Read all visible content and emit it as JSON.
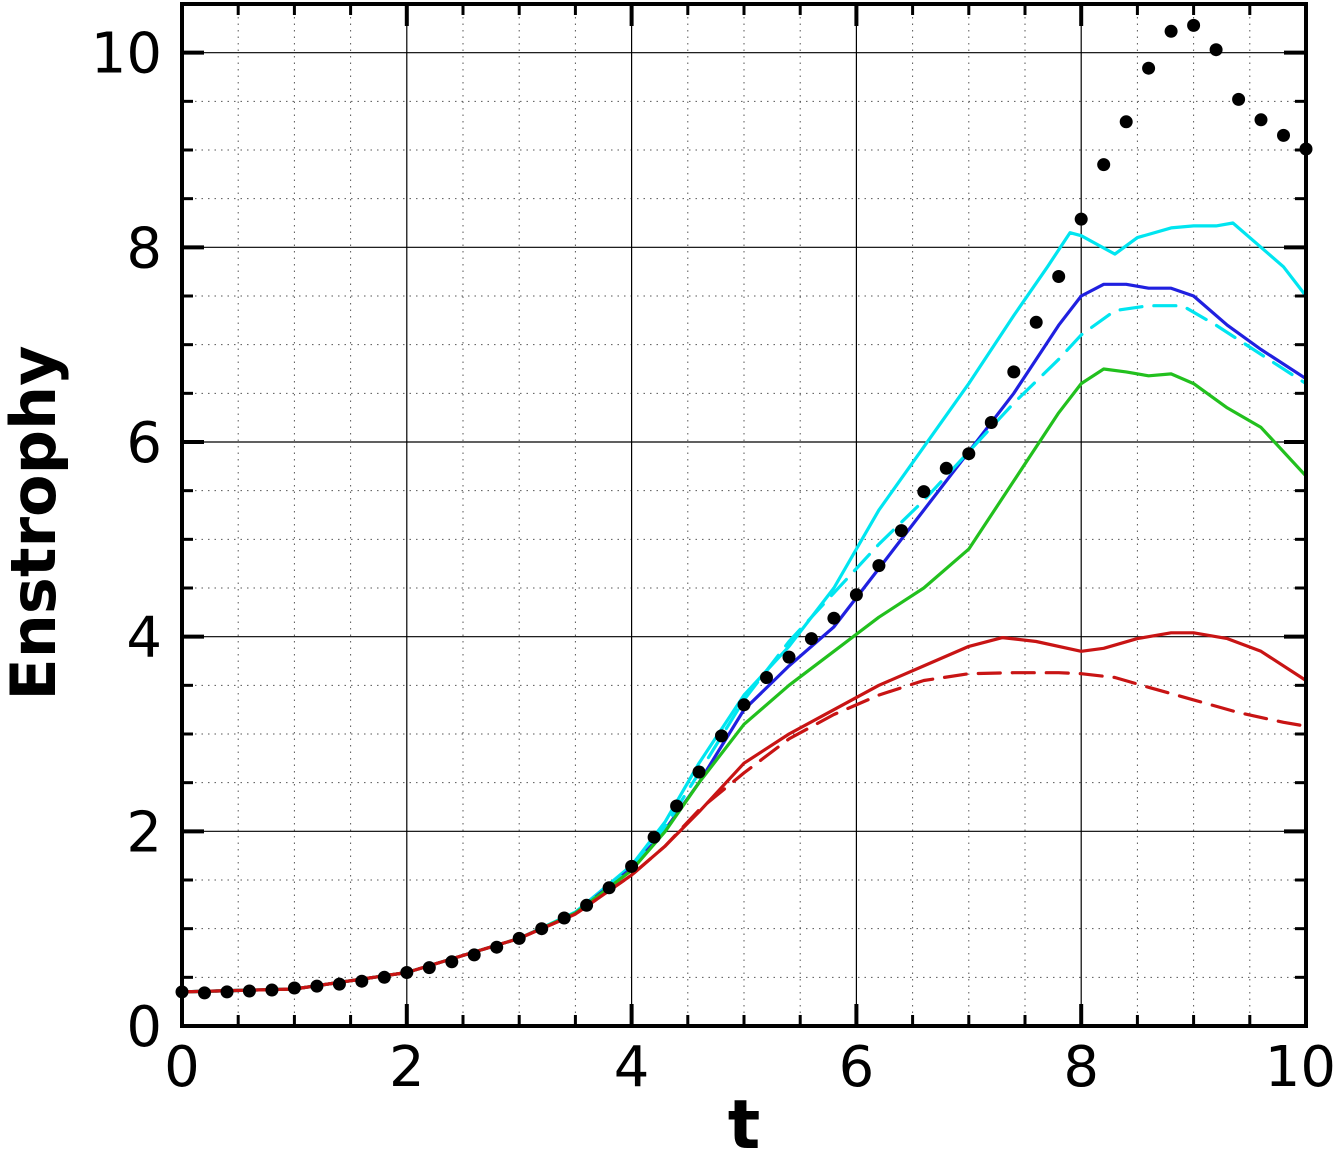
{
  "chart_data": {
    "type": "line",
    "title": "",
    "xlabel": "t",
    "ylabel": "Enstrophy",
    "xlim": [
      0,
      10
    ],
    "ylim": [
      0,
      10.5
    ],
    "xticks": [
      "0",
      "2",
      "4",
      "6",
      "8",
      "10"
    ],
    "yticks": [
      "0",
      "2",
      "4",
      "6",
      "8",
      "10"
    ],
    "xtick_values": [
      0,
      2,
      4,
      6,
      8,
      10
    ],
    "ytick_values": [
      0,
      2,
      4,
      6,
      8,
      10
    ],
    "grid": "major solid, minor dotted",
    "legend": "none",
    "series": [
      {
        "style": "scatter-dots",
        "color": "#000000",
        "x": [
          0,
          0.2,
          0.4,
          0.6,
          0.8,
          1.0,
          1.2,
          1.4,
          1.6,
          1.8,
          2.0,
          2.2,
          2.4,
          2.6,
          2.8,
          3.0,
          3.2,
          3.4,
          3.6,
          3.8,
          4.0,
          4.2,
          4.4,
          4.6,
          4.8,
          5.0,
          5.2,
          5.4,
          5.6,
          5.8,
          6.0,
          6.2,
          6.4,
          6.6,
          6.8,
          7.0,
          7.2,
          7.4,
          7.6,
          7.8,
          8.0,
          8.2,
          8.4,
          8.6,
          8.8,
          9.0,
          9.2,
          9.4,
          9.6,
          9.8,
          10.0
        ],
        "y": [
          0.35,
          0.34,
          0.35,
          0.36,
          0.37,
          0.39,
          0.41,
          0.43,
          0.46,
          0.5,
          0.55,
          0.6,
          0.66,
          0.73,
          0.81,
          0.9,
          1.0,
          1.11,
          1.24,
          1.42,
          1.64,
          1.94,
          2.26,
          2.61,
          2.98,
          3.3,
          3.58,
          3.79,
          3.98,
          4.19,
          4.43,
          4.73,
          5.09,
          5.49,
          5.73,
          5.88,
          6.2,
          6.72,
          7.23,
          7.7,
          8.29,
          8.85,
          9.29,
          9.84,
          10.22,
          10.28,
          10.03,
          9.52,
          9.31,
          9.15,
          9.01
        ]
      },
      {
        "style": "solid",
        "color": "#00e5f0",
        "x": [
          0,
          1,
          2,
          3,
          3.5,
          4,
          4.3,
          4.6,
          5.0,
          5.4,
          5.8,
          6.2,
          6.6,
          7.0,
          7.4,
          7.7,
          7.9,
          8.0,
          8.3,
          8.5,
          8.8,
          9.0,
          9.2,
          9.35,
          9.6,
          9.8,
          10.0
        ],
        "y": [
          0.35,
          0.38,
          0.55,
          0.9,
          1.17,
          1.65,
          2.1,
          2.7,
          3.4,
          3.9,
          4.5,
          5.3,
          5.95,
          6.6,
          7.3,
          7.8,
          8.15,
          8.12,
          7.93,
          8.1,
          8.2,
          8.22,
          8.22,
          8.25,
          8.0,
          7.8,
          7.5
        ]
      },
      {
        "style": "solid",
        "color": "#2020e0",
        "x": [
          0,
          1,
          2,
          3,
          3.5,
          4,
          4.3,
          4.6,
          5.0,
          5.4,
          5.8,
          6.2,
          6.6,
          7.0,
          7.4,
          7.8,
          8.0,
          8.2,
          8.4,
          8.6,
          8.8,
          9.0,
          9.3,
          9.6,
          10.0
        ],
        "y": [
          0.35,
          0.38,
          0.55,
          0.9,
          1.16,
          1.62,
          2.02,
          2.5,
          3.25,
          3.7,
          4.1,
          4.7,
          5.3,
          5.9,
          6.5,
          7.2,
          7.5,
          7.62,
          7.62,
          7.58,
          7.58,
          7.5,
          7.2,
          6.95,
          6.65
        ]
      },
      {
        "style": "dashed",
        "color": "#00e5f0",
        "x": [
          0,
          1,
          2,
          3,
          3.5,
          4,
          4.3,
          4.6,
          5.0,
          5.4,
          5.8,
          6.2,
          6.6,
          7.0,
          7.4,
          7.8,
          8.0,
          8.3,
          8.6,
          8.9,
          9.2,
          9.6,
          10.0
        ],
        "y": [
          0.35,
          0.38,
          0.55,
          0.9,
          1.16,
          1.62,
          2.05,
          2.6,
          3.35,
          3.95,
          4.45,
          4.95,
          5.4,
          5.9,
          6.4,
          6.85,
          7.1,
          7.35,
          7.4,
          7.4,
          7.2,
          6.9,
          6.6
        ]
      },
      {
        "style": "solid",
        "color": "#22c01e",
        "x": [
          0,
          1,
          2,
          3,
          3.5,
          4,
          4.3,
          4.6,
          5.0,
          5.4,
          5.8,
          6.2,
          6.6,
          7.0,
          7.4,
          7.8,
          8.0,
          8.2,
          8.4,
          8.6,
          8.8,
          9.0,
          9.3,
          9.6,
          10.0
        ],
        "y": [
          0.35,
          0.38,
          0.55,
          0.9,
          1.16,
          1.6,
          2.0,
          2.5,
          3.1,
          3.5,
          3.85,
          4.2,
          4.5,
          4.9,
          5.6,
          6.3,
          6.6,
          6.75,
          6.72,
          6.68,
          6.7,
          6.6,
          6.35,
          6.15,
          5.65
        ]
      },
      {
        "style": "solid",
        "color": "#c81414",
        "x": [
          0,
          1,
          2,
          3,
          3.5,
          4,
          4.3,
          4.6,
          5.0,
          5.4,
          5.8,
          6.2,
          6.6,
          7.0,
          7.3,
          7.6,
          8.0,
          8.2,
          8.5,
          8.8,
          9.0,
          9.3,
          9.6,
          10.0
        ],
        "y": [
          0.35,
          0.38,
          0.55,
          0.9,
          1.15,
          1.55,
          1.85,
          2.2,
          2.7,
          3.0,
          3.25,
          3.5,
          3.7,
          3.9,
          3.99,
          3.95,
          3.85,
          3.88,
          3.98,
          4.04,
          4.04,
          3.98,
          3.85,
          3.55
        ]
      },
      {
        "style": "dashed",
        "color": "#c81414",
        "x": [
          0,
          1,
          2,
          3,
          3.5,
          4,
          4.3,
          4.6,
          5.0,
          5.4,
          5.8,
          6.2,
          6.6,
          7.0,
          7.4,
          7.8,
          8.0,
          8.3,
          8.6,
          9.0,
          9.4,
          9.8,
          10.0
        ],
        "y": [
          0.35,
          0.38,
          0.55,
          0.9,
          1.15,
          1.55,
          1.85,
          2.22,
          2.6,
          2.95,
          3.2,
          3.4,
          3.55,
          3.62,
          3.63,
          3.63,
          3.62,
          3.58,
          3.48,
          3.35,
          3.22,
          3.12,
          3.08
        ]
      }
    ]
  }
}
